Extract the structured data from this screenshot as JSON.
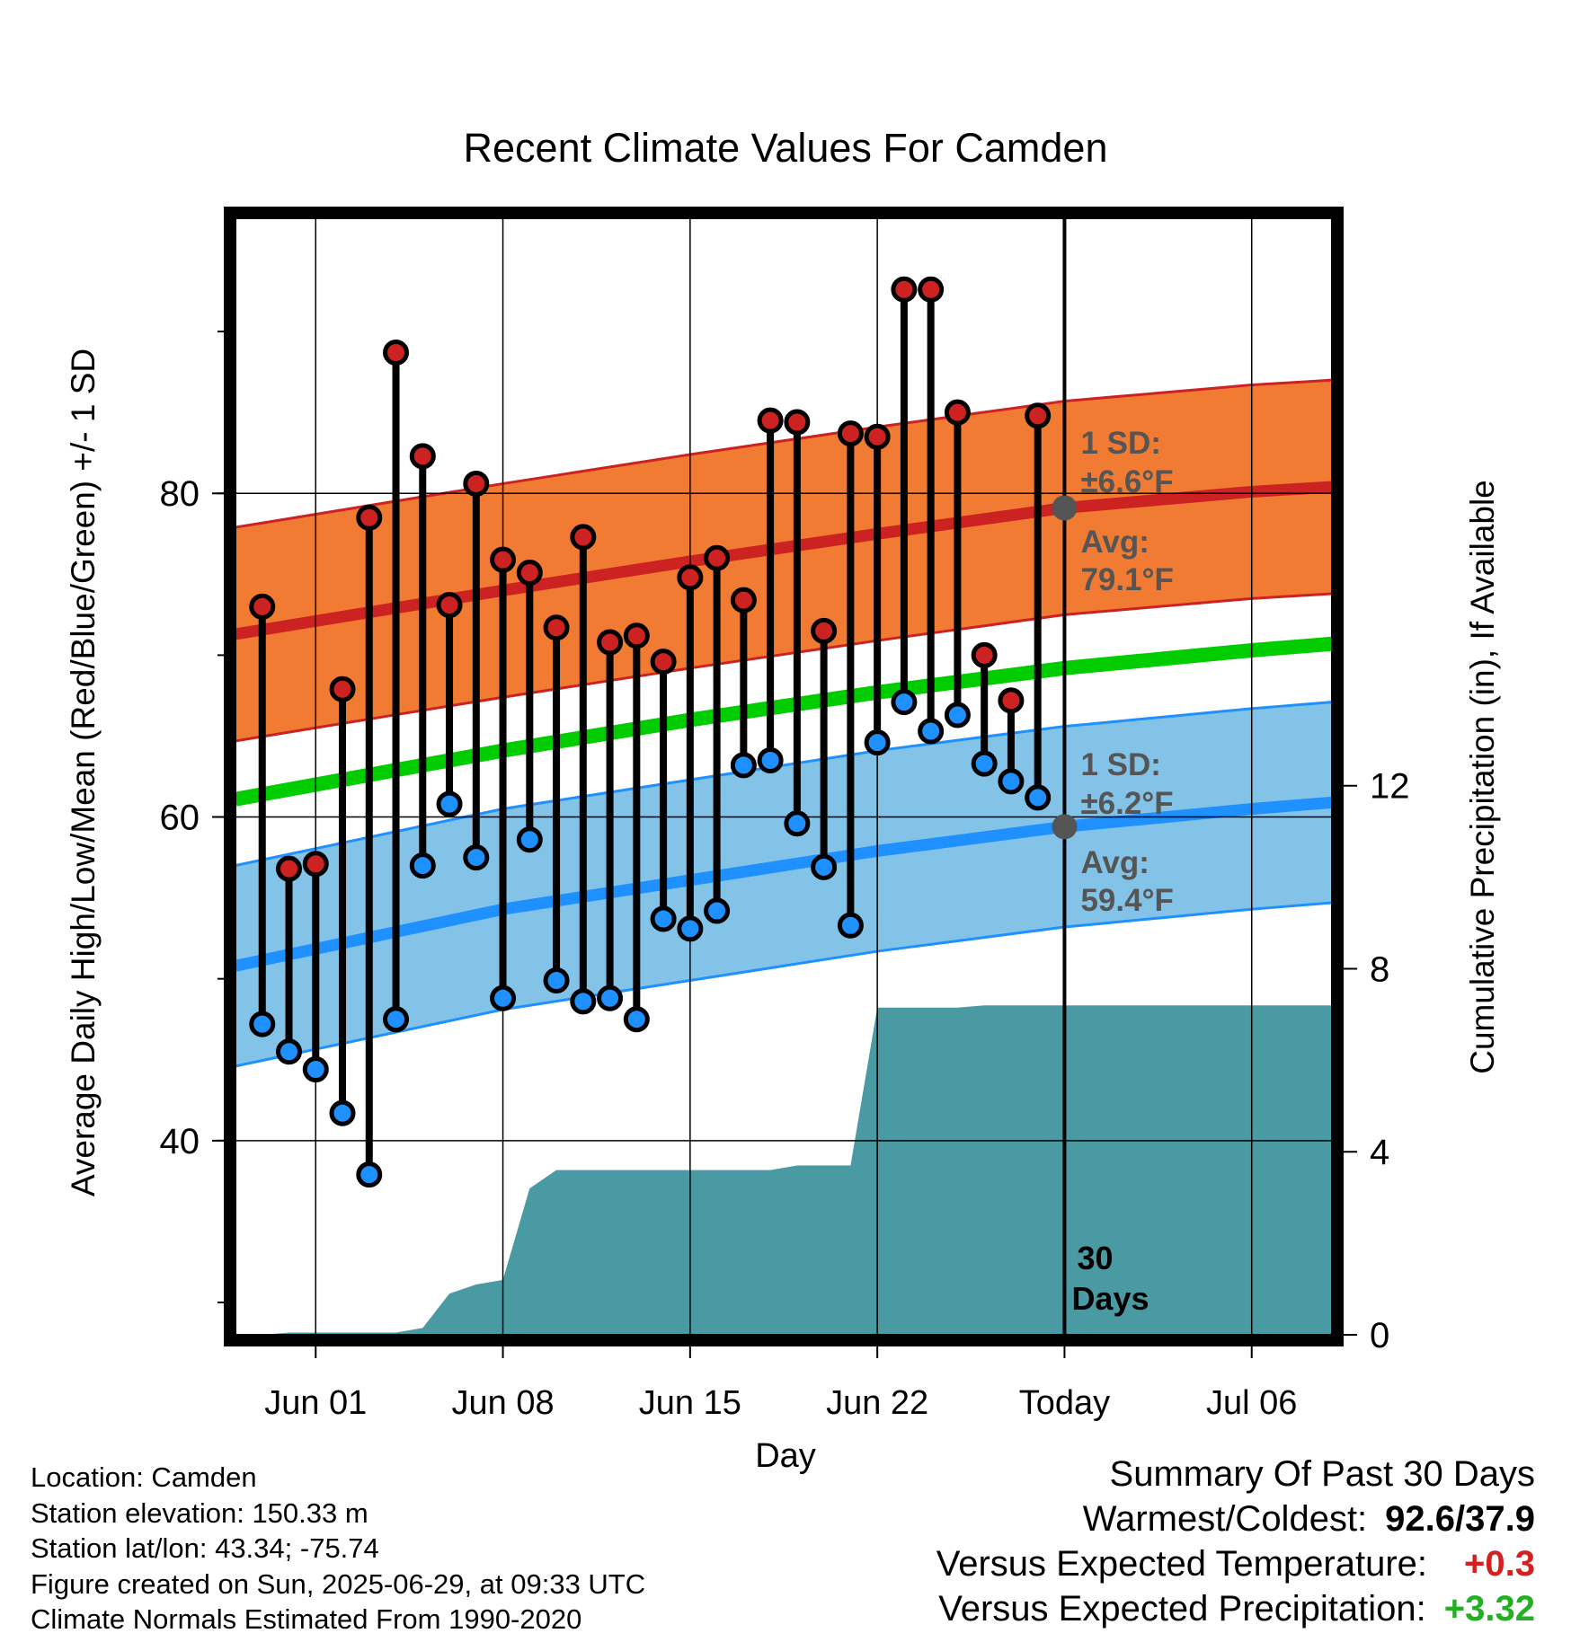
{
  "chart_data": {
    "type": "line",
    "title": "Recent Climate Values For Camden",
    "xlabel": "Day",
    "ylabel": "Average Daily High/Low/Mean (Red/Blue/Green) +/- 1 SD",
    "y2label": "Cumulative Precipitation (in), If Available",
    "x_range": [
      "2025-05-29",
      "2025-07-09"
    ],
    "ylim": [
      28,
      97
    ],
    "y2lim": [
      0,
      24.4
    ],
    "yticks": [
      "40",
      "60",
      "80"
    ],
    "y2ticks": [
      "0",
      "4",
      "8",
      "12"
    ],
    "xticks": [
      {
        "date": "2025-06-01",
        "label": "Jun 01"
      },
      {
        "date": "2025-06-08",
        "label": "Jun 08"
      },
      {
        "date": "2025-06-15",
        "label": "Jun 15"
      },
      {
        "date": "2025-06-22",
        "label": "Jun 22"
      },
      {
        "date": "2025-06-29",
        "label": "Today"
      },
      {
        "date": "2025-07-06",
        "label": "Jul 06"
      }
    ],
    "grid": true,
    "today": "2025-06-29",
    "daily": [
      {
        "date": "2025-05-30",
        "high": 73.0,
        "low": 47.2
      },
      {
        "date": "2025-05-31",
        "high": 56.8,
        "low": 45.5
      },
      {
        "date": "2025-06-01",
        "high": 57.1,
        "low": 44.4
      },
      {
        "date": "2025-06-02",
        "high": 67.9,
        "low": 41.7
      },
      {
        "date": "2025-06-03",
        "high": 78.5,
        "low": 37.9
      },
      {
        "date": "2025-06-04",
        "high": 88.7,
        "low": 47.5
      },
      {
        "date": "2025-06-05",
        "high": 82.3,
        "low": 57.0
      },
      {
        "date": "2025-06-06",
        "high": 73.1,
        "low": 60.8
      },
      {
        "date": "2025-06-07",
        "high": 80.6,
        "low": 57.5
      },
      {
        "date": "2025-06-08",
        "high": 75.9,
        "low": 48.8
      },
      {
        "date": "2025-06-09",
        "high": 75.1,
        "low": 58.6
      },
      {
        "date": "2025-06-10",
        "high": 71.7,
        "low": 49.9
      },
      {
        "date": "2025-06-11",
        "high": 77.3,
        "low": 48.6
      },
      {
        "date": "2025-06-12",
        "high": 70.8,
        "low": 48.8
      },
      {
        "date": "2025-06-13",
        "high": 71.2,
        "low": 47.5
      },
      {
        "date": "2025-06-14",
        "high": 69.6,
        "low": 53.7
      },
      {
        "date": "2025-06-15",
        "high": 74.8,
        "low": 53.1
      },
      {
        "date": "2025-06-16",
        "high": 76.0,
        "low": 54.2
      },
      {
        "date": "2025-06-17",
        "high": 73.4,
        "low": 63.2
      },
      {
        "date": "2025-06-18",
        "high": 84.5,
        "low": 63.5
      },
      {
        "date": "2025-06-19",
        "high": 84.4,
        "low": 59.6
      },
      {
        "date": "2025-06-20",
        "high": 71.5,
        "low": 56.9
      },
      {
        "date": "2025-06-21",
        "high": 83.7,
        "low": 53.3
      },
      {
        "date": "2025-06-22",
        "high": 83.5,
        "low": 64.6
      },
      {
        "date": "2025-06-23",
        "high": 92.6,
        "low": 67.1
      },
      {
        "date": "2025-06-24",
        "high": 92.6,
        "low": 65.3
      },
      {
        "date": "2025-06-25",
        "high": 85.0,
        "low": 66.3
      },
      {
        "date": "2025-06-26",
        "high": 70.0,
        "low": 63.3
      },
      {
        "date": "2025-06-27",
        "high": 67.2,
        "low": 62.2
      },
      {
        "date": "2025-06-28",
        "high": 84.8,
        "low": 61.2
      }
    ],
    "normals": [
      {
        "date": "2025-05-29",
        "high": 71.3,
        "low": 50.8,
        "mean": 61.1
      },
      {
        "date": "2025-06-08",
        "high": 74.0,
        "low": 54.3,
        "mean": 64.1
      },
      {
        "date": "2025-06-15",
        "high": 75.8,
        "low": 56.1,
        "mean": 66.0
      },
      {
        "date": "2025-06-22",
        "high": 77.5,
        "low": 57.9,
        "mean": 67.7
      },
      {
        "date": "2025-06-29",
        "high": 79.1,
        "low": 59.4,
        "mean": 69.2
      },
      {
        "date": "2025-07-06",
        "high": 80.1,
        "low": 60.5,
        "mean": 70.3
      },
      {
        "date": "2025-07-09",
        "high": 80.4,
        "low": 60.9,
        "mean": 70.7
      }
    ],
    "sd_high": 6.6,
    "sd_low": 6.2,
    "precip_cumulative": [
      {
        "date": "2025-05-30",
        "value": 0.0
      },
      {
        "date": "2025-05-31",
        "value": 0.05
      },
      {
        "date": "2025-06-04",
        "value": 0.05
      },
      {
        "date": "2025-06-05",
        "value": 0.15
      },
      {
        "date": "2025-06-06",
        "value": 0.9
      },
      {
        "date": "2025-06-07",
        "value": 1.1
      },
      {
        "date": "2025-06-08",
        "value": 1.2
      },
      {
        "date": "2025-06-09",
        "value": 3.2
      },
      {
        "date": "2025-06-10",
        "value": 3.6
      },
      {
        "date": "2025-06-17",
        "value": 3.6
      },
      {
        "date": "2025-06-18",
        "value": 3.6
      },
      {
        "date": "2025-06-19",
        "value": 3.7
      },
      {
        "date": "2025-06-20",
        "value": 3.7
      },
      {
        "date": "2025-06-21",
        "value": 3.7
      },
      {
        "date": "2025-06-22",
        "value": 7.15
      },
      {
        "date": "2025-06-25",
        "value": 7.15
      },
      {
        "date": "2025-06-26",
        "value": 7.2
      },
      {
        "date": "2025-07-09",
        "value": 7.2
      }
    ],
    "annotations": {
      "high_sd_label": "1 SD:",
      "high_sd_value": "±6.6°F",
      "high_avg_label": "Avg:",
      "high_avg_value": "79.1°F",
      "low_sd_label": "1 SD:",
      "low_sd_value": "±6.2°F",
      "low_avg_label": "Avg:",
      "low_avg_value": "59.4°F",
      "days_label_1": "30",
      "days_label_2": "Days"
    },
    "colors": {
      "high_band": "#f17b33",
      "high_line": "#cc2222",
      "low_band": "#84c3e8",
      "low_line": "#1e90ff",
      "mean_line": "#00cc00",
      "precip": "#4a9aa3",
      "high_dot": "#cc2222",
      "low_dot": "#1e90ff",
      "avg_dot": "#555555",
      "annotation_text": "#555555"
    }
  },
  "footer": {
    "location": "Location: Camden",
    "elevation": "Station elevation: 150.33 m",
    "latlon": "Station lat/lon: 43.34; -75.74",
    "created": "Figure created on Sun, 2025-06-29, at 09:33 UTC",
    "normals": "Climate Normals Estimated From 1990-2020"
  },
  "summary": {
    "title": "Summary Of Past 30 Days",
    "warmest_label": "Warmest/Coldest:",
    "warmest_value": "92.6/37.9",
    "temp_label": "Versus Expected Temperature:",
    "temp_value": "+0.3",
    "precip_label": "Versus Expected Precipitation:",
    "precip_value": "+3.32"
  }
}
